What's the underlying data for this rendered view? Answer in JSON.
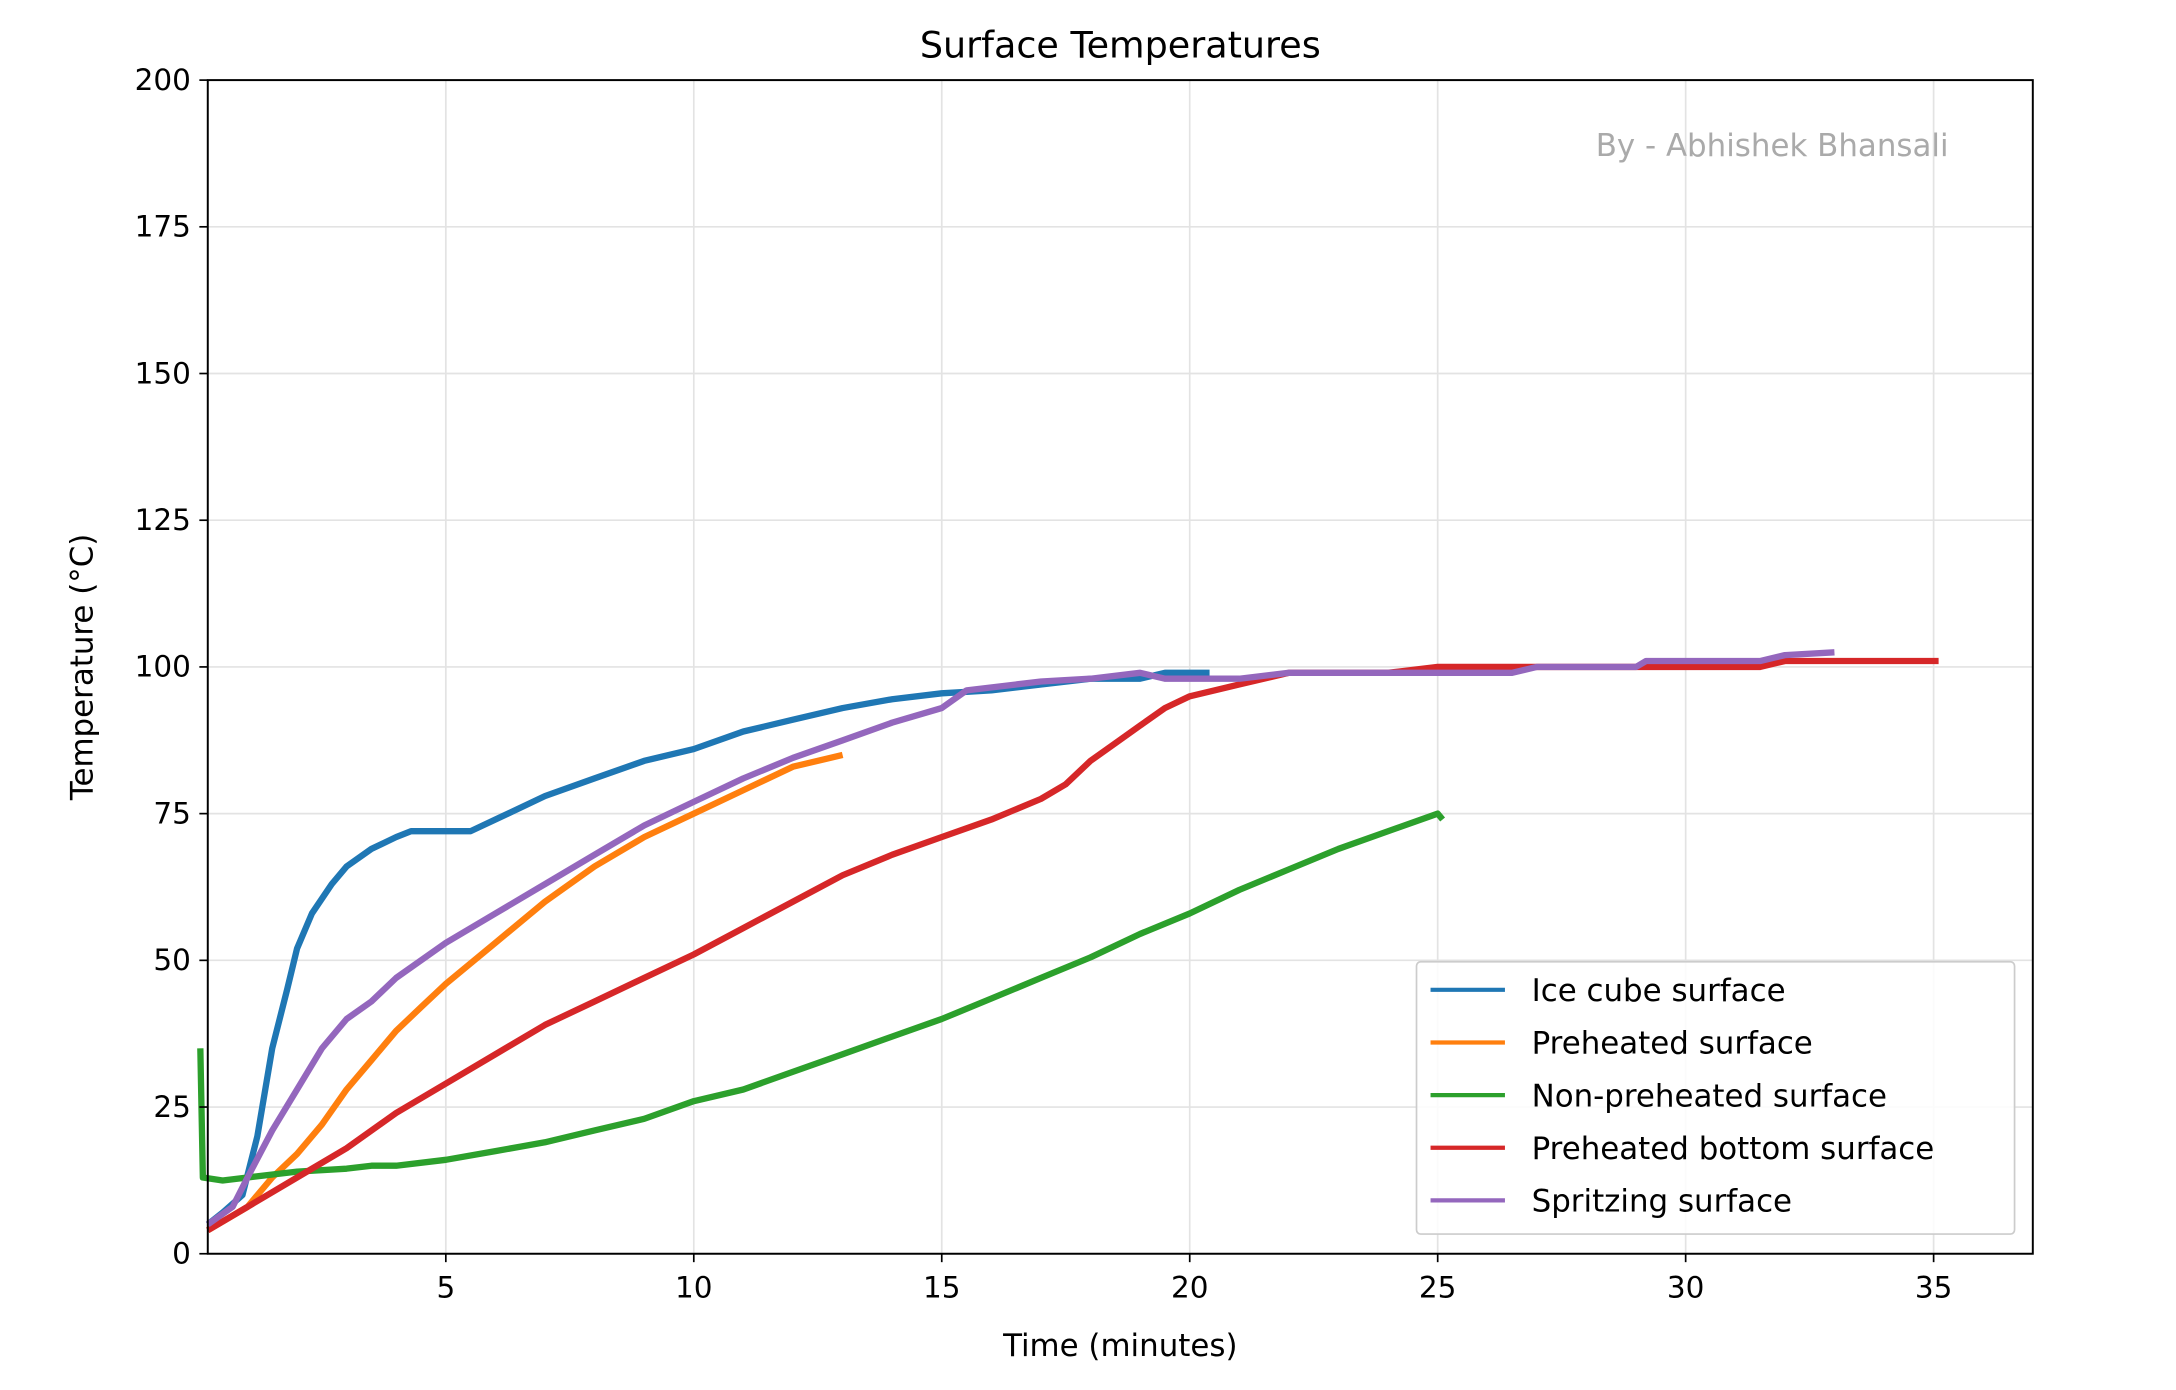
{
  "chart_data": {
    "type": "line",
    "title": "Surface Temperatures",
    "xlabel": "Time (minutes)",
    "ylabel": "Temperature (°C)",
    "xlim": [
      0.2,
      37
    ],
    "ylim": [
      0,
      200
    ],
    "xticks": [
      5,
      10,
      15,
      20,
      25,
      30,
      35
    ],
    "yticks": [
      0,
      25,
      50,
      75,
      100,
      125,
      150,
      175,
      200
    ],
    "grid": true,
    "legend_position": "lower-right",
    "annotation": "By - Abhishek Bhansali",
    "series": [
      {
        "name": "Ice cube surface",
        "color": "#1f77b4",
        "points": [
          [
            0.2,
            5
          ],
          [
            0.5,
            7
          ],
          [
            0.9,
            10
          ],
          [
            1.2,
            20
          ],
          [
            1.5,
            35
          ],
          [
            1.8,
            45
          ],
          [
            2,
            52
          ],
          [
            2.3,
            58
          ],
          [
            2.7,
            63
          ],
          [
            3,
            66
          ],
          [
            3.5,
            69
          ],
          [
            4,
            71
          ],
          [
            4.3,
            72
          ],
          [
            5.5,
            72
          ],
          [
            6,
            74
          ],
          [
            7,
            78
          ],
          [
            8,
            81
          ],
          [
            9,
            84
          ],
          [
            10,
            86
          ],
          [
            11,
            89
          ],
          [
            12,
            91
          ],
          [
            13,
            93
          ],
          [
            14,
            94.5
          ],
          [
            15,
            95.5
          ],
          [
            16,
            96
          ],
          [
            17,
            97
          ],
          [
            18,
            98
          ],
          [
            19,
            98
          ],
          [
            19.5,
            99
          ],
          [
            20.4,
            99
          ]
        ]
      },
      {
        "name": "Preheated surface",
        "color": "#ff7f0e",
        "points": [
          [
            0.2,
            4
          ],
          [
            1,
            8
          ],
          [
            1.5,
            13
          ],
          [
            2,
            17
          ],
          [
            2.5,
            22
          ],
          [
            3,
            28
          ],
          [
            3.5,
            33
          ],
          [
            4,
            38
          ],
          [
            4.5,
            42
          ],
          [
            5,
            46
          ],
          [
            6,
            53
          ],
          [
            7,
            60
          ],
          [
            8,
            66
          ],
          [
            9,
            71
          ],
          [
            10,
            75
          ],
          [
            11,
            79
          ],
          [
            12,
            83
          ],
          [
            13,
            85
          ]
        ]
      },
      {
        "name": "Non-preheated surface",
        "color": "#2ca02c",
        "points": [
          [
            0.05,
            35
          ],
          [
            0.1,
            13
          ],
          [
            0.5,
            12.5
          ],
          [
            1,
            13
          ],
          [
            2,
            14
          ],
          [
            3,
            14.5
          ],
          [
            3.5,
            15
          ],
          [
            4,
            15
          ],
          [
            5,
            16
          ],
          [
            6,
            17.5
          ],
          [
            7,
            19
          ],
          [
            8,
            21
          ],
          [
            9,
            23
          ],
          [
            10,
            26
          ],
          [
            11,
            28
          ],
          [
            12,
            31
          ],
          [
            13,
            34
          ],
          [
            14,
            37
          ],
          [
            15,
            40
          ],
          [
            16,
            43.5
          ],
          [
            17,
            47
          ],
          [
            18,
            50.5
          ],
          [
            19,
            54.5
          ],
          [
            20,
            58
          ],
          [
            21,
            62
          ],
          [
            22,
            65.5
          ],
          [
            23,
            69
          ],
          [
            24,
            72
          ],
          [
            25,
            75
          ],
          [
            25.1,
            74
          ]
        ]
      },
      {
        "name": "Preheated bottom surface",
        "color": "#d62728",
        "points": [
          [
            0.2,
            4
          ],
          [
            1,
            8
          ],
          [
            2,
            13
          ],
          [
            3,
            18
          ],
          [
            4,
            24
          ],
          [
            5,
            29
          ],
          [
            6,
            34
          ],
          [
            7,
            39
          ],
          [
            8,
            43
          ],
          [
            9,
            47
          ],
          [
            10,
            51
          ],
          [
            11,
            55.5
          ],
          [
            12,
            60
          ],
          [
            13,
            64.5
          ],
          [
            14,
            68
          ],
          [
            15,
            71
          ],
          [
            16,
            74
          ],
          [
            17,
            77.5
          ],
          [
            17.5,
            80
          ],
          [
            18,
            84
          ],
          [
            18.5,
            87
          ],
          [
            19,
            90
          ],
          [
            19.5,
            93
          ],
          [
            20,
            95
          ],
          [
            21,
            97
          ],
          [
            22,
            99
          ],
          [
            24,
            99
          ],
          [
            25,
            100
          ],
          [
            31.5,
            100
          ],
          [
            32,
            101
          ],
          [
            35.1,
            101
          ]
        ]
      },
      {
        "name": "Spritzing surface",
        "color": "#9467bd",
        "points": [
          [
            0.2,
            5
          ],
          [
            0.7,
            8
          ],
          [
            1,
            13
          ],
          [
            1.5,
            21
          ],
          [
            2,
            28
          ],
          [
            2.5,
            35
          ],
          [
            3,
            40
          ],
          [
            3.5,
            43
          ],
          [
            4,
            47
          ],
          [
            5,
            53
          ],
          [
            6,
            58
          ],
          [
            7,
            63
          ],
          [
            8,
            68
          ],
          [
            9,
            73
          ],
          [
            10,
            77
          ],
          [
            11,
            81
          ],
          [
            12,
            84.5
          ],
          [
            13,
            87.5
          ],
          [
            14,
            90.5
          ],
          [
            15,
            93
          ],
          [
            15.5,
            96
          ],
          [
            16.5,
            97
          ],
          [
            17,
            97.5
          ],
          [
            18,
            98
          ],
          [
            19,
            99
          ],
          [
            19.5,
            98
          ],
          [
            21,
            98
          ],
          [
            22,
            99
          ],
          [
            26.5,
            99
          ],
          [
            27,
            100
          ],
          [
            29,
            100
          ],
          [
            29.2,
            101
          ],
          [
            31.5,
            101
          ],
          [
            32,
            102
          ],
          [
            33,
            102.5
          ]
        ]
      }
    ]
  }
}
